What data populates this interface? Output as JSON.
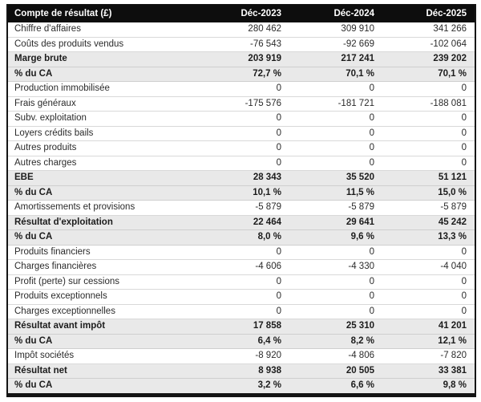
{
  "header": {
    "label": "Compte de résultat (£)",
    "columns": [
      "Déc-2023",
      "Déc-2024",
      "Déc-2025"
    ]
  },
  "rows": [
    {
      "label": "Chiffre d'affaires",
      "values": [
        "280 462",
        "309 910",
        "341 266"
      ],
      "emphasis": false
    },
    {
      "label": "Coûts des produits vendus",
      "values": [
        "-76 543",
        "-92 669",
        "-102 064"
      ],
      "emphasis": false
    },
    {
      "label": "Marge brute",
      "values": [
        "203 919",
        "217 241",
        "239 202"
      ],
      "emphasis": true
    },
    {
      "label": "% du CA",
      "values": [
        "72,7 %",
        "70,1 %",
        "70,1 %"
      ],
      "emphasis": true
    },
    {
      "label": "Production immobilisée",
      "values": [
        "0",
        "0",
        "0"
      ],
      "emphasis": false
    },
    {
      "label": "Frais généraux",
      "values": [
        "-175 576",
        "-181 721",
        "-188 081"
      ],
      "emphasis": false
    },
    {
      "label": "Subv. exploitation",
      "values": [
        "0",
        "0",
        "0"
      ],
      "emphasis": false
    },
    {
      "label": "Loyers crédits bails",
      "values": [
        "0",
        "0",
        "0"
      ],
      "emphasis": false
    },
    {
      "label": "Autres produits",
      "values": [
        "0",
        "0",
        "0"
      ],
      "emphasis": false
    },
    {
      "label": "Autres charges",
      "values": [
        "0",
        "0",
        "0"
      ],
      "emphasis": false
    },
    {
      "label": "EBE",
      "values": [
        "28 343",
        "35 520",
        "51 121"
      ],
      "emphasis": true
    },
    {
      "label": "% du CA",
      "values": [
        "10,1 %",
        "11,5 %",
        "15,0 %"
      ],
      "emphasis": true
    },
    {
      "label": "Amortissements et provisions",
      "values": [
        "-5 879",
        "-5 879",
        "-5 879"
      ],
      "emphasis": false
    },
    {
      "label": "Résultat d'exploitation",
      "values": [
        "22 464",
        "29 641",
        "45 242"
      ],
      "emphasis": true
    },
    {
      "label": "% du CA",
      "values": [
        "8,0 %",
        "9,6 %",
        "13,3 %"
      ],
      "emphasis": true
    },
    {
      "label": "Produits financiers",
      "values": [
        "0",
        "0",
        "0"
      ],
      "emphasis": false
    },
    {
      "label": "Charges financières",
      "values": [
        "-4 606",
        "-4 330",
        "-4 040"
      ],
      "emphasis": false
    },
    {
      "label": "Profit (perte) sur cessions",
      "values": [
        "0",
        "0",
        "0"
      ],
      "emphasis": false
    },
    {
      "label": "Produits exceptionnels",
      "values": [
        "0",
        "0",
        "0"
      ],
      "emphasis": false
    },
    {
      "label": "Charges exceptionnelles",
      "values": [
        "0",
        "0",
        "0"
      ],
      "emphasis": false
    },
    {
      "label": "Résultat avant impôt",
      "values": [
        "17 858",
        "25 310",
        "41 201"
      ],
      "emphasis": true
    },
    {
      "label": "% du CA",
      "values": [
        "6,4 %",
        "8,2 %",
        "12,1 %"
      ],
      "emphasis": true
    },
    {
      "label": "Impôt sociétés",
      "values": [
        "-8 920",
        "-4 806",
        "-7 820"
      ],
      "emphasis": false
    },
    {
      "label": "Résultat net",
      "values": [
        "8 938",
        "20 505",
        "33 381"
      ],
      "emphasis": true
    },
    {
      "label": "% du CA",
      "values": [
        "3,2 %",
        "6,6 %",
        "9,8 %"
      ],
      "emphasis": true
    }
  ],
  "colors": {
    "header_bg": "#0d0d0d",
    "header_text": "#ffffff",
    "emphasis_row_bg": "#e9e9e9",
    "row_divider": "#d9d9d9",
    "outer_border": "#141414"
  },
  "chart_data": {
    "type": "table",
    "title": "Compte de résultat (£)",
    "columns": [
      "Déc-2023",
      "Déc-2024",
      "Déc-2025"
    ],
    "rows": [
      {
        "label": "Chiffre d'affaires",
        "values": [
          280462,
          309910,
          341266
        ]
      },
      {
        "label": "Coûts des produits vendus",
        "values": [
          -76543,
          -92669,
          -102064
        ]
      },
      {
        "label": "Marge brute",
        "values": [
          203919,
          217241,
          239202
        ]
      },
      {
        "label": "% du CA (marge brute)",
        "values": [
          72.7,
          70.1,
          70.1
        ]
      },
      {
        "label": "Production immobilisée",
        "values": [
          0,
          0,
          0
        ]
      },
      {
        "label": "Frais généraux",
        "values": [
          -175576,
          -181721,
          -188081
        ]
      },
      {
        "label": "Subv. exploitation",
        "values": [
          0,
          0,
          0
        ]
      },
      {
        "label": "Loyers crédits bails",
        "values": [
          0,
          0,
          0
        ]
      },
      {
        "label": "Autres produits",
        "values": [
          0,
          0,
          0
        ]
      },
      {
        "label": "Autres charges",
        "values": [
          0,
          0,
          0
        ]
      },
      {
        "label": "EBE",
        "values": [
          28343,
          35520,
          51121
        ]
      },
      {
        "label": "% du CA (EBE)",
        "values": [
          10.1,
          11.5,
          15.0
        ]
      },
      {
        "label": "Amortissements et provisions",
        "values": [
          -5879,
          -5879,
          -5879
        ]
      },
      {
        "label": "Résultat d'exploitation",
        "values": [
          22464,
          29641,
          45242
        ]
      },
      {
        "label": "% du CA (résultat d'exploitation)",
        "values": [
          8.0,
          9.6,
          13.3
        ]
      },
      {
        "label": "Produits financiers",
        "values": [
          0,
          0,
          0
        ]
      },
      {
        "label": "Charges financières",
        "values": [
          -4606,
          -4330,
          -4040
        ]
      },
      {
        "label": "Profit (perte) sur cessions",
        "values": [
          0,
          0,
          0
        ]
      },
      {
        "label": "Produits exceptionnels",
        "values": [
          0,
          0,
          0
        ]
      },
      {
        "label": "Charges exceptionnelles",
        "values": [
          0,
          0,
          0
        ]
      },
      {
        "label": "Résultat avant impôt",
        "values": [
          17858,
          25310,
          41201
        ]
      },
      {
        "label": "% du CA (résultat avant impôt)",
        "values": [
          6.4,
          8.2,
          12.1
        ]
      },
      {
        "label": "Impôt sociétés",
        "values": [
          -8920,
          -4806,
          -7820
        ]
      },
      {
        "label": "Résultat net",
        "values": [
          8938,
          20505,
          33381
        ]
      },
      {
        "label": "% du CA (résultat net)",
        "values": [
          3.2,
          6.6,
          9.8
        ]
      }
    ]
  }
}
